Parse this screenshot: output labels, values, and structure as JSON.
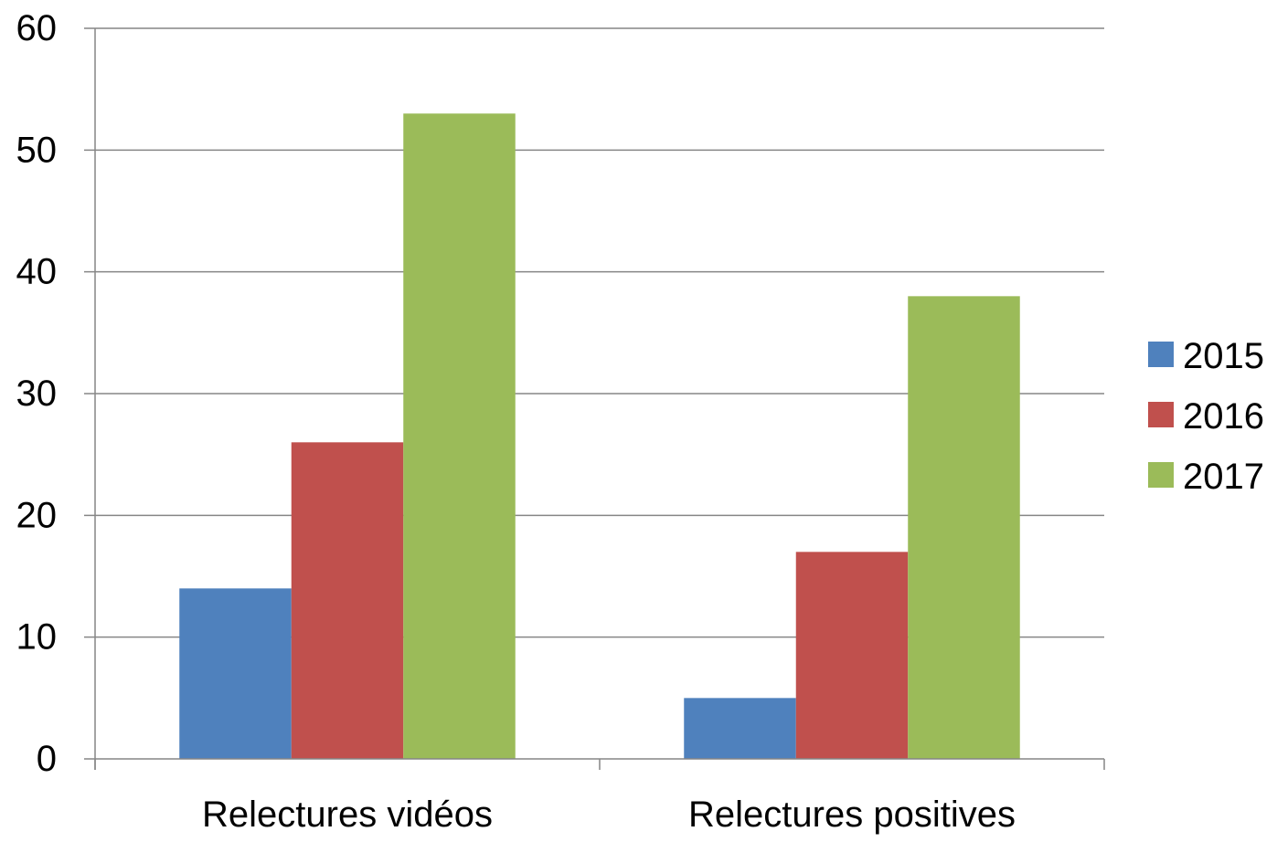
{
  "chart_data": {
    "type": "bar",
    "title": "",
    "xlabel": "",
    "ylabel": "",
    "categories": [
      "Relectures vidéos",
      "Relectures positives"
    ],
    "series": [
      {
        "name": "2015",
        "values": [
          14,
          5
        ],
        "color": "#4F81BD"
      },
      {
        "name": "2016",
        "values": [
          26,
          17
        ],
        "color": "#C0504D"
      },
      {
        "name": "2017",
        "values": [
          53,
          38
        ],
        "color": "#9BBB59"
      }
    ],
    "ylim": [
      0,
      60
    ],
    "yticks": [
      0,
      10,
      20,
      30,
      40,
      50,
      60
    ],
    "grid": true,
    "gridline_color": "#868686",
    "legend_position": "right"
  }
}
